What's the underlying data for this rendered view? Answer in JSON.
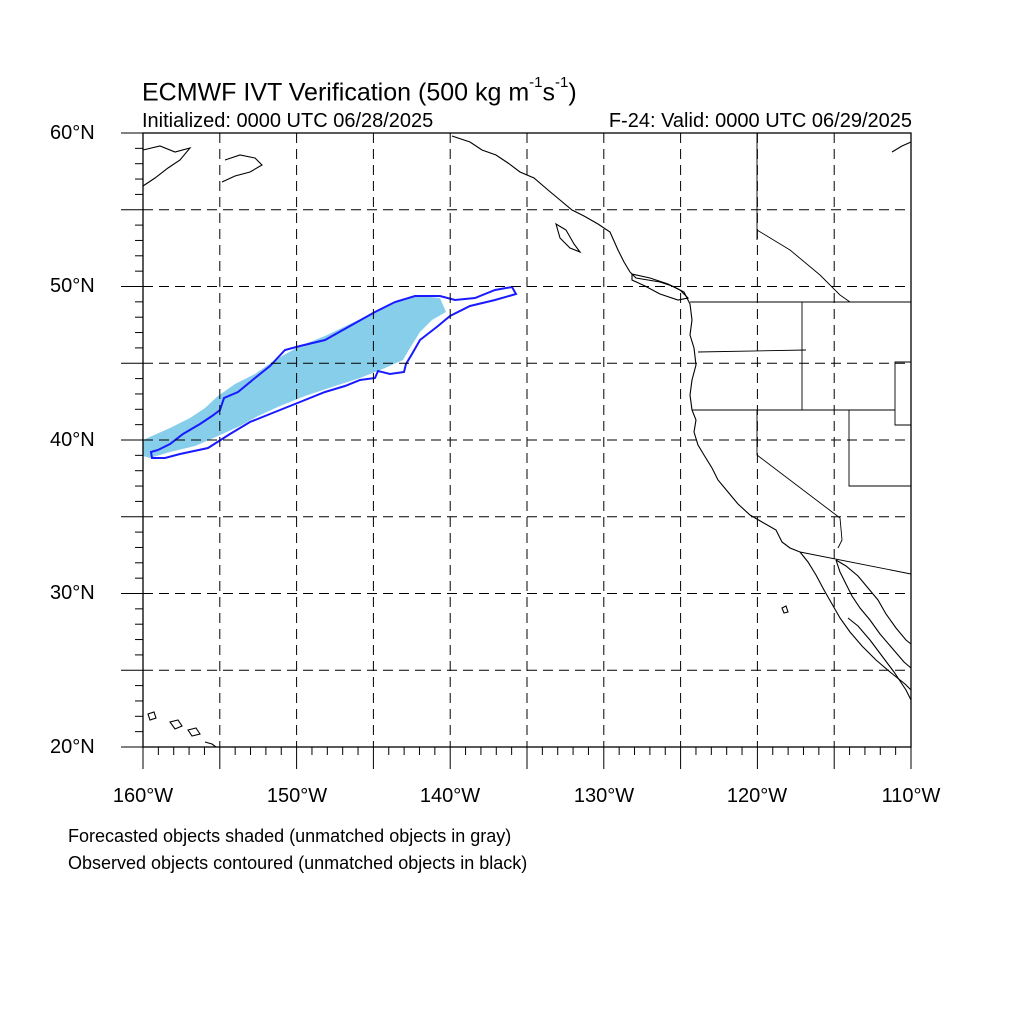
{
  "title": {
    "main": "ECMWF IVT Verification (500 kg m",
    "exp1": "-1",
    "mid": "s",
    "exp2": "-1",
    "tail": ")"
  },
  "subtitle": {
    "initialized": "Initialized: 0000 UTC 06/28/2025",
    "valid": "F-24: Valid: 0000 UTC 06/29/2025"
  },
  "axes": {
    "lat_labels": [
      "60°N",
      "50°N",
      "40°N",
      "30°N",
      "20°N"
    ],
    "lon_labels": [
      "160°W",
      "150°W",
      "140°W",
      "130°W",
      "120°W",
      "110°W"
    ],
    "lat_range": [
      20,
      60
    ],
    "lon_range": [
      -160,
      -110
    ],
    "gridlines": "dashed, every 5 degrees"
  },
  "objects": {
    "forecast": {
      "description": "Forecasted objects shaded",
      "color": "#87ceeb",
      "matched": true
    },
    "observed": {
      "description": "Observed objects contoured",
      "color": "#1a1aff",
      "matched": true
    }
  },
  "footnotes": {
    "line1": "Forecasted objects shaded (unmatched objects in gray)",
    "line2": "Observed objects contoured (unmatched objects in black)"
  }
}
